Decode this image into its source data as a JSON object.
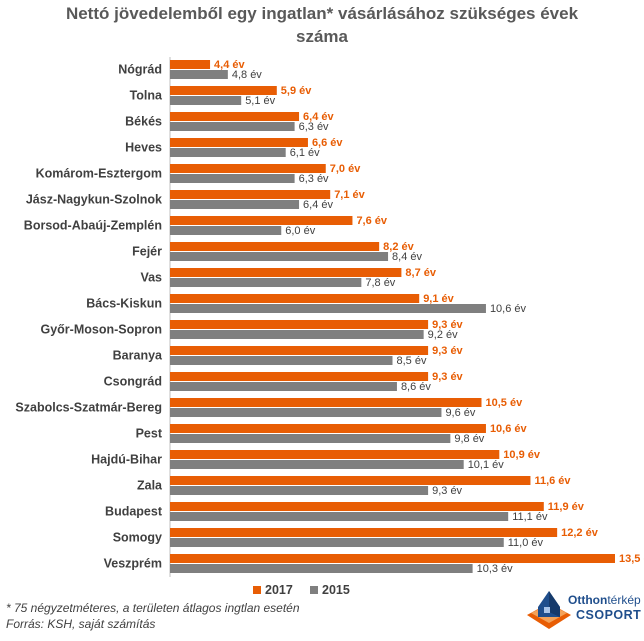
{
  "chart_data": {
    "type": "bar",
    "orientation": "horizontal",
    "title_lines": [
      "Nettó jövedelemből egy ingatlan* vásárlásához szükséges évek",
      "száma"
    ],
    "categories": [
      "Nógrád",
      "Tolna",
      "Békés",
      "Heves",
      "Komárom-Esztergom",
      "Jász-Nagykun-Szolnok",
      "Borsod-Abaúj-Zemplén",
      "Fejér",
      "Vas",
      "Bács-Kiskun",
      "Győr-Moson-Sopron",
      "Baranya",
      "Csongrád",
      "Szabolcs-Szatmár-Bereg",
      "Pest",
      "Hajdú-Bihar",
      "Zala",
      "Budapest",
      "Somogy",
      "Veszprém"
    ],
    "series": [
      {
        "name": "2017",
        "color": "#e85d04",
        "values": [
          4.4,
          5.9,
          6.4,
          6.6,
          7.0,
          7.1,
          7.6,
          8.2,
          8.7,
          9.1,
          9.3,
          9.3,
          9.3,
          10.5,
          10.6,
          10.9,
          11.6,
          11.9,
          12.2,
          13.5
        ],
        "labels": [
          "4,4 év",
          "5,9 év",
          "6,4 év",
          "6,6 év",
          "7,0 év",
          "7,1 év",
          "7,6 év",
          "8,2 év",
          "8,7 év",
          "9,1 év",
          "9,3 év",
          "9,3 év",
          "9,3 év",
          "10,5 év",
          "10,6 év",
          "10,9 év",
          "11,6 év",
          "11,9 év",
          "12,2 év",
          "13,5 év"
        ]
      },
      {
        "name": "2015",
        "color": "#7f7f7f",
        "values": [
          4.8,
          5.1,
          6.3,
          6.1,
          6.3,
          6.4,
          6.0,
          8.4,
          7.8,
          10.6,
          9.2,
          8.5,
          8.6,
          9.6,
          9.8,
          10.1,
          9.3,
          11.1,
          11.0,
          10.3
        ],
        "labels": [
          "4,8 év",
          "5,1 év",
          "6,3 év",
          "6,1 év",
          "6,3 év",
          "6,4 év",
          "6,0 év",
          "8,4 év",
          "7,8 év",
          "10,6 év",
          "9,2 év",
          "8,5 év",
          "8,6 év",
          "9,6 év",
          "9,8 év",
          "10,1 év",
          "9,3 év",
          "11,1 év",
          "11,0 év",
          "10,3 év"
        ]
      }
    ],
    "xlim": [
      3.5,
      13.5
    ],
    "grid": false,
    "legend": "bottom-center"
  },
  "footnote": {
    "line1": "* 75 négyzetméteres, a területen átlagos ingtlan esetén",
    "line2": "Forrás: KSH, saját számítás"
  },
  "logo": {
    "brand_a": "Otthon",
    "brand_b": "térkép",
    "brand_c": "CSOPORT"
  }
}
